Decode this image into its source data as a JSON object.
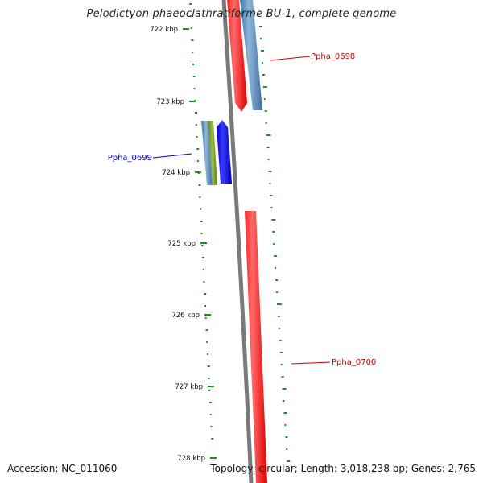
{
  "title": "Pelodictyon phaeoclathratiforme BU-1, complete genome",
  "footer": {
    "accession": "Accession: NC_011060",
    "topology": "Topology: circular; Length: 3,018,238 bp; Genes: 2,765"
  },
  "ticks": [
    "722 kbp",
    "723 kbp",
    "724 kbp",
    "725 kbp",
    "726 kbp",
    "727 kbp",
    "728 kbp"
  ],
  "genes": [
    {
      "label": "Ppha_0698",
      "color": "#cc0000"
    },
    {
      "label": "Ppha_0699",
      "color": "#0000cc"
    },
    {
      "label": "Ppha_0700",
      "color": "#cc0000"
    }
  ],
  "colors": {
    "backbone": "#7a7a7a",
    "forward_cds": "#0000ff",
    "reverse_cds": "#ff0000",
    "feature_blue": "#4f83b6",
    "feature_green": "#6b8e23",
    "gc_ticks": "#1f8f1f"
  }
}
